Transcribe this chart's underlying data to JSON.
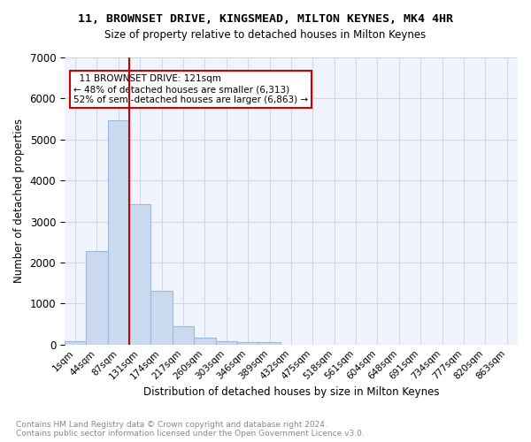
{
  "title": "11, BROWNSET DRIVE, KINGSMEAD, MILTON KEYNES, MK4 4HR",
  "subtitle": "Size of property relative to detached houses in Milton Keynes",
  "xlabel": "Distribution of detached houses by size in Milton Keynes",
  "ylabel": "Number of detached properties",
  "bar_values": [
    75,
    2275,
    5475,
    3425,
    1300,
    450,
    175,
    90,
    55,
    55,
    0,
    0,
    0,
    0,
    0,
    0,
    0,
    0,
    0,
    0,
    0
  ],
  "bin_labels": [
    "1sqm",
    "44sqm",
    "87sqm",
    "131sqm",
    "174sqm",
    "217sqm",
    "260sqm",
    "303sqm",
    "346sqm",
    "389sqm",
    "432sqm",
    "475sqm",
    "518sqm",
    "561sqm",
    "604sqm",
    "648sqm",
    "691sqm",
    "734sqm",
    "777sqm",
    "820sqm",
    "863sqm"
  ],
  "bar_color": "#c9d9f0",
  "bar_edge_color": "#a0b8d8",
  "grid_color": "#d0d8e8",
  "annotation_box_color": "#cc0000",
  "vline_color": "#cc0000",
  "vline_x": 2.5,
  "property_name": "11 BROWNSET DRIVE: 121sqm",
  "pct_smaller": 48,
  "n_smaller": 6313,
  "pct_larger_semi": 52,
  "n_larger_semi": 6863,
  "ylim": [
    0,
    7000
  ],
  "footer_text": "Contains HM Land Registry data © Crown copyright and database right 2024.\nContains public sector information licensed under the Open Government Licence v3.0.",
  "background_color": "#f0f4fc"
}
